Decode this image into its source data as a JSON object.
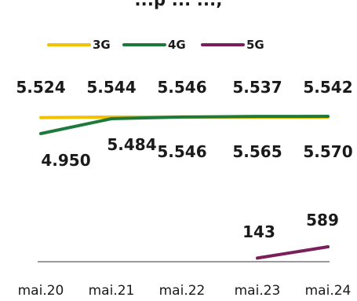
{
  "chart_data": {
    "type": "line",
    "title": "...p ... ...,",
    "categories": [
      "mai.20",
      "mai.21",
      "mai.22",
      "mai.23",
      "mai.24"
    ],
    "legend_position": "top",
    "grid": false,
    "series": [
      {
        "name": "3G",
        "color": "#f2c100",
        "values": [
          5524,
          5544,
          5546,
          5537,
          5542
        ],
        "labels": [
          "5.524",
          "5.544",
          "5.546",
          "5.537",
          "5.542"
        ]
      },
      {
        "name": "4G",
        "color": "#1e7a3a",
        "values": [
          4950,
          5484,
          5546,
          5565,
          5570
        ],
        "labels": [
          "4.950",
          "5.484",
          "5.546",
          "5.565",
          "5.570"
        ]
      },
      {
        "name": "5G",
        "color": "#7a1f5c",
        "values": [
          null,
          null,
          null,
          143,
          589
        ],
        "labels": [
          "",
          "",
          "",
          "143",
          "589"
        ]
      }
    ],
    "baseline_color": "#9a9a9a"
  }
}
